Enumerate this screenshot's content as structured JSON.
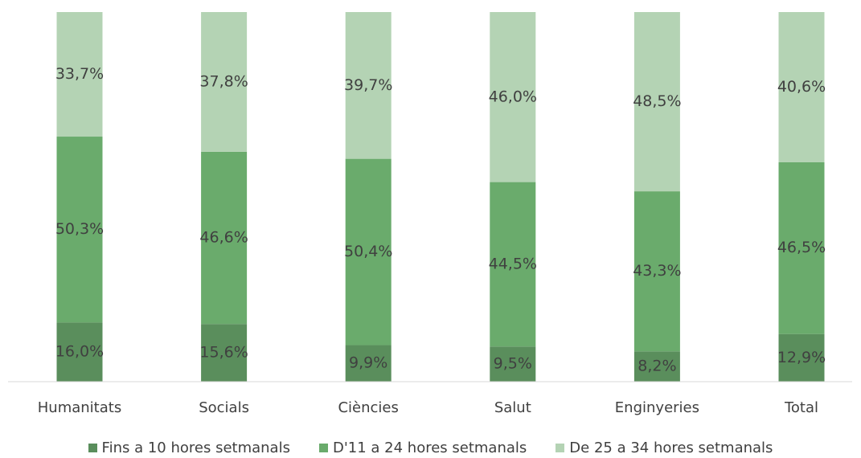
{
  "chart_data": {
    "type": "bar",
    "stacked": true,
    "normalized": true,
    "categories": [
      "Humanitats",
      "Socials",
      "Ciències",
      "Salut",
      "Enginyeries",
      "Total"
    ],
    "series": [
      {
        "name": "Fins a 10 hores setmanals",
        "color": "#5a8e5c",
        "values": [
          16.0,
          15.6,
          9.9,
          9.5,
          8.2,
          12.9
        ],
        "labels": [
          "16,0%",
          "15,6%",
          "9,9%",
          "9,5%",
          "8,2%",
          "12,9%"
        ]
      },
      {
        "name": "D'11 a 24 hores setmanals",
        "color": "#6aab6c",
        "values": [
          50.3,
          46.6,
          50.4,
          44.5,
          43.3,
          46.5
        ],
        "labels": [
          "50,3%",
          "46,6%",
          "50,4%",
          "44,5%",
          "43,3%",
          "46,5%"
        ]
      },
      {
        "name": "De 25 a 34 hores setmanals",
        "color": "#b4d3b4",
        "values": [
          33.7,
          37.8,
          39.7,
          46.0,
          48.5,
          40.6
        ],
        "labels": [
          "33,7%",
          "37,8%",
          "39,7%",
          "46,0%",
          "48,5%",
          "40,6%"
        ]
      }
    ],
    "ylim": [
      0,
      100
    ],
    "grid": false,
    "legend_position": "bottom"
  }
}
